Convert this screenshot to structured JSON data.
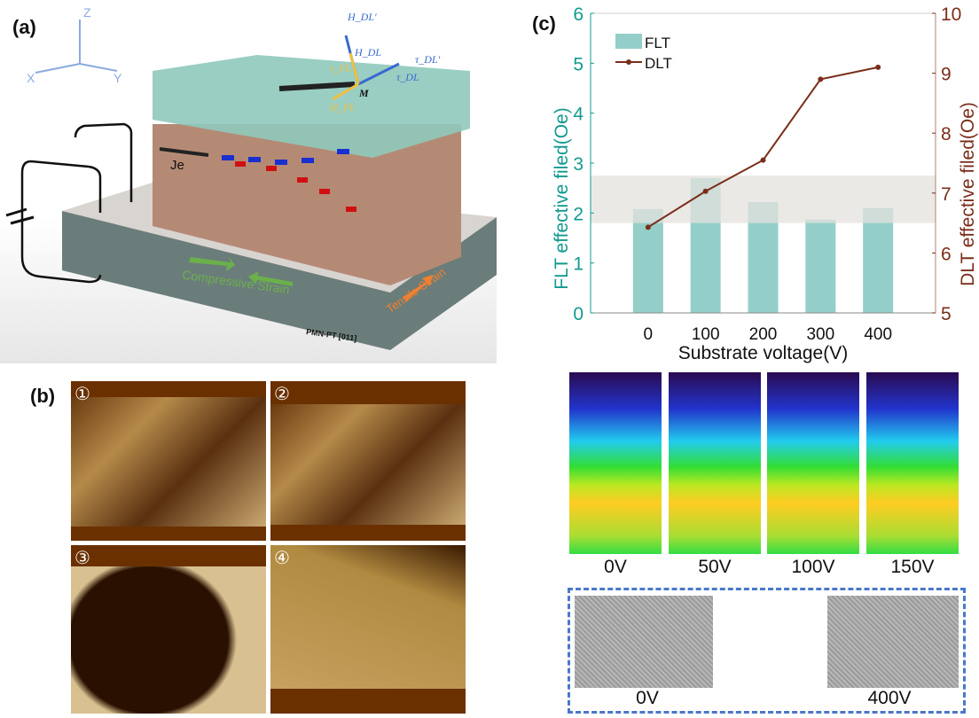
{
  "panel_a": {
    "label": "(a)",
    "axes": {
      "z": "Z",
      "x": "X",
      "y": "Y"
    },
    "vectors": {
      "h_dl_prime": "H_DL′",
      "h_dl": "H_DL",
      "tau_fl": "τ_FL",
      "tau_dl": "τ_DL",
      "tau_dl_prime": "τ_DL′",
      "h_fl": "H_FL",
      "m": "M"
    },
    "current_label": "Je",
    "compressive": "Compressive Strain",
    "tensile": "Tensile Strain",
    "substrate": "PMN-PT [011]",
    "colors": {
      "top_layer": "#8fc9bb",
      "mid_layer": "#b58a74",
      "substrate": "#6b7d7a",
      "compressive": "#6ab04c",
      "tensile": "#f08030"
    }
  },
  "panel_b": {
    "label": "(b)",
    "images": [
      "①",
      "②",
      "③",
      "④"
    ]
  },
  "panel_c": {
    "label": "(c)",
    "heatmap_labels": [
      "0V",
      "50V",
      "100V",
      "150V"
    ],
    "xmcd_labels": [
      "0V",
      "400V"
    ]
  },
  "chart_data": {
    "type": "bar",
    "categories": [
      "0",
      "100",
      "200",
      "300",
      "400"
    ],
    "x": [
      0,
      100,
      200,
      300,
      400
    ],
    "xlabel": "Substrate voltage(V)",
    "ylabel": "FLT effective filed(Oe)",
    "y2label": "DLT effective filed(Oe)",
    "xlim": [
      -100,
      500
    ],
    "ylim": [
      0,
      6
    ],
    "y2lim": [
      5,
      10
    ],
    "yticks": [
      "0",
      "1",
      "2",
      "3",
      "4",
      "5",
      "6"
    ],
    "y2ticks": [
      "5",
      "6",
      "7",
      "8",
      "9",
      "10"
    ],
    "shaded_band": [
      1.8,
      2.75
    ],
    "legend_placement": "top-left",
    "series": [
      {
        "name": "FLT",
        "type": "bar",
        "axis": "left",
        "color": "#93cfc8",
        "values": [
          2.08,
          2.7,
          2.22,
          1.87,
          2.1
        ]
      },
      {
        "name": "DLT",
        "type": "line",
        "axis": "right",
        "color": "#7a2e1a",
        "values": [
          6.43,
          7.03,
          7.55,
          8.9,
          9.1
        ]
      }
    ],
    "colors": {
      "left_axis": "#129a90",
      "right_axis": "#7a2e1a",
      "band": "#e4e2de"
    }
  }
}
